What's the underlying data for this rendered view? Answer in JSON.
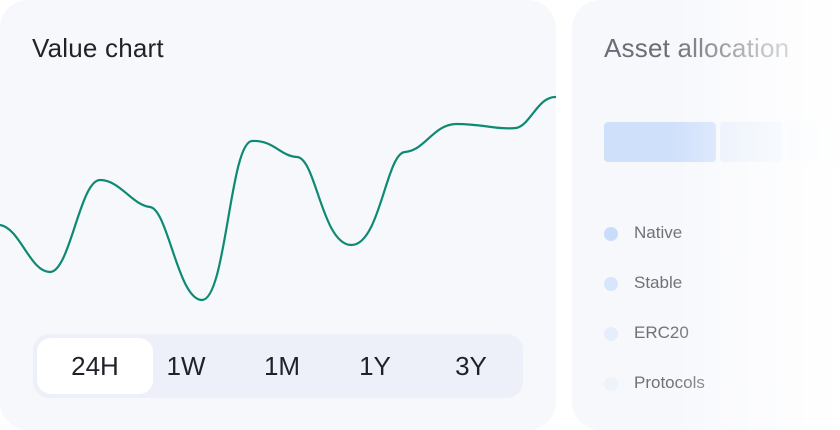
{
  "value_chart": {
    "title": "Value chart",
    "line_color": "#0e8a74",
    "ranges": [
      {
        "label": "24H",
        "active": true
      },
      {
        "label": "1W",
        "active": false
      },
      {
        "label": "1M",
        "active": false
      },
      {
        "label": "1Y",
        "active": false
      },
      {
        "label": "3Y",
        "active": false
      }
    ]
  },
  "asset_allocation": {
    "title": "Asset allocation",
    "segments": [
      {
        "color": "#cfe0fb"
      },
      {
        "color": "#e6eefb"
      },
      {
        "color": "#f0f4fb"
      }
    ],
    "legend": [
      {
        "label": "Native",
        "color": "#c9dcfa"
      },
      {
        "label": "Stable",
        "color": "#d8e6fb"
      },
      {
        "label": "ERC20",
        "color": "#e6eefb"
      },
      {
        "label": "Protocols",
        "color": "#eef2f9"
      }
    ]
  }
}
